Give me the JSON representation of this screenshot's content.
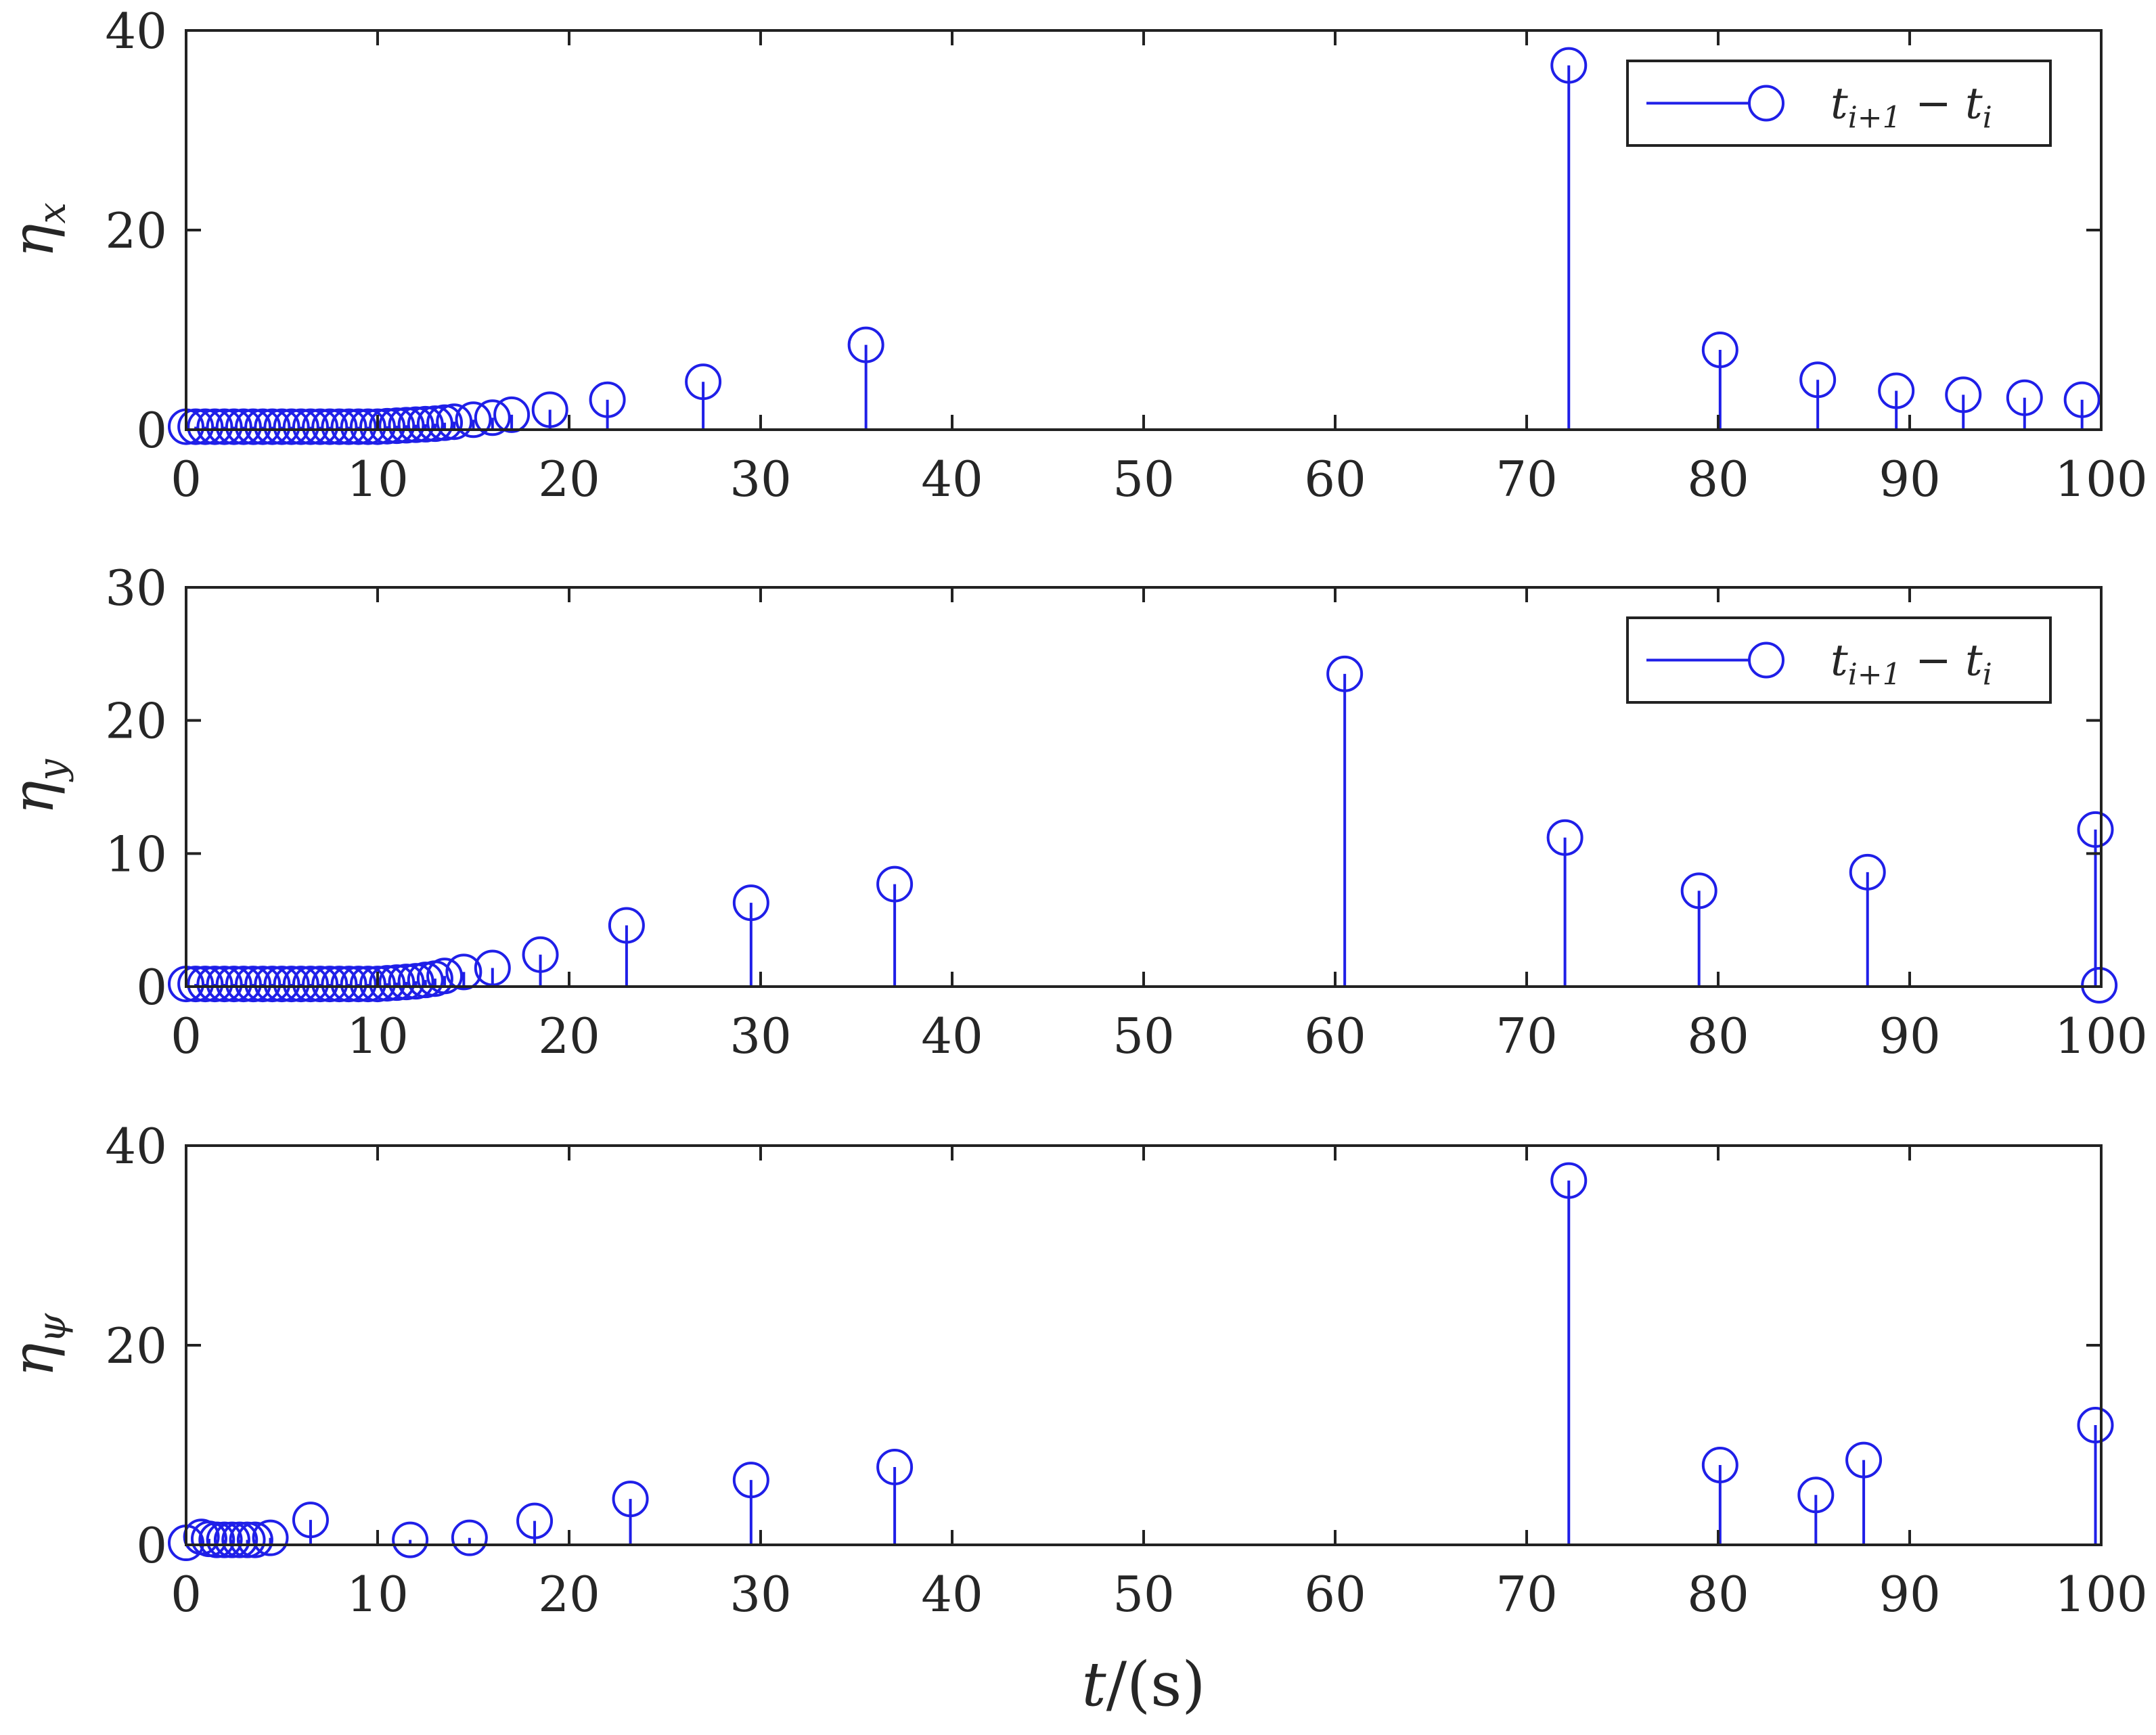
{
  "chart_data": [
    {
      "type": "stem",
      "ylabel": "η_x",
      "ylabel_main": "η",
      "ylabel_sub": "x",
      "xlim": [
        0,
        100
      ],
      "ylim": [
        0,
        40
      ],
      "xticks": [
        0,
        10,
        20,
        30,
        40,
        50,
        60,
        70,
        80,
        90,
        100
      ],
      "yticks": [
        0,
        20,
        40
      ],
      "legend": {
        "label_main": "t",
        "label_sub1": "i+1",
        "label_mid": " − t",
        "label_sub2": "i",
        "position": "top-right"
      },
      "series": [
        {
          "x": [
            0,
            0.5,
            1,
            1.5,
            2,
            2.5,
            3,
            3.5,
            4,
            4.5,
            5,
            5.5,
            6,
            6.5,
            7,
            7.5,
            8,
            8.5,
            9,
            9.5,
            10,
            10.5,
            11,
            11.5,
            12,
            12.5,
            13,
            13.5,
            14,
            15,
            16,
            17,
            19,
            22,
            27,
            35.5,
            72.2,
            80.1,
            85.2,
            89.3,
            92.8,
            96,
            99
          ],
          "y": [
            0.3,
            0.3,
            0.3,
            0.3,
            0.3,
            0.3,
            0.3,
            0.3,
            0.3,
            0.3,
            0.3,
            0.3,
            0.3,
            0.3,
            0.3,
            0.3,
            0.3,
            0.3,
            0.3,
            0.3,
            0.3,
            0.35,
            0.4,
            0.45,
            0.5,
            0.55,
            0.6,
            0.7,
            0.8,
            1.0,
            1.2,
            1.5,
            2.0,
            3.0,
            4.8,
            8.5,
            36.5,
            8.0,
            5.0,
            3.9,
            3.5,
            3.2,
            3.0
          ]
        }
      ]
    },
    {
      "type": "stem",
      "ylabel": "η_y",
      "ylabel_main": "η",
      "ylabel_sub": "y",
      "xlim": [
        0,
        100
      ],
      "ylim": [
        0,
        30
      ],
      "xticks": [
        0,
        10,
        20,
        30,
        40,
        50,
        60,
        70,
        80,
        90,
        100
      ],
      "yticks": [
        0,
        10,
        20,
        30
      ],
      "legend": {
        "label_main": "t",
        "label_sub1": "i+1",
        "label_mid": " − t",
        "label_sub2": "i",
        "position": "top-right"
      },
      "series": [
        {
          "x": [
            0,
            0.5,
            1,
            1.5,
            2,
            2.5,
            3,
            3.5,
            4,
            4.5,
            5,
            5.5,
            6,
            6.5,
            7,
            7.5,
            8,
            8.5,
            9,
            9.5,
            10,
            10.5,
            11,
            11.5,
            12,
            12.5,
            13,
            13.5,
            14.5,
            16,
            18.5,
            23,
            29.5,
            37,
            60.5,
            72,
            79,
            87.8,
            99.7,
            99.9
          ],
          "y": [
            0.2,
            0.2,
            0.2,
            0.2,
            0.2,
            0.2,
            0.2,
            0.2,
            0.2,
            0.2,
            0.2,
            0.2,
            0.2,
            0.2,
            0.2,
            0.2,
            0.2,
            0.2,
            0.2,
            0.2,
            0.2,
            0.25,
            0.3,
            0.35,
            0.4,
            0.5,
            0.6,
            0.8,
            1.1,
            1.4,
            2.4,
            4.6,
            6.3,
            7.7,
            23.5,
            11.2,
            7.2,
            8.6,
            11.8,
            0.1
          ]
        }
      ]
    },
    {
      "type": "stem",
      "ylabel": "η_ψ",
      "ylabel_main": "η",
      "ylabel_sub": "ψ",
      "xlabel": "t/(s)",
      "xlim": [
        0,
        100
      ],
      "ylim": [
        0,
        40
      ],
      "xticks": [
        0,
        10,
        20,
        30,
        40,
        50,
        60,
        70,
        80,
        90,
        100
      ],
      "yticks": [
        0,
        20,
        40
      ],
      "series": [
        {
          "x": [
            0,
            0.8,
            1.2,
            1.6,
            2.0,
            2.4,
            2.8,
            3.2,
            3.6,
            4.4,
            6.5,
            11.7,
            14.8,
            18.2,
            23.2,
            29.5,
            37,
            72.2,
            80.1,
            85.1,
            87.6,
            99.7
          ],
          "y": [
            0.2,
            0.8,
            0.6,
            0.5,
            0.5,
            0.5,
            0.5,
            0.5,
            0.5,
            0.7,
            2.5,
            0.5,
            0.7,
            2.4,
            4.6,
            6.5,
            7.8,
            36.5,
            8.0,
            5.0,
            8.5,
            12.0
          ]
        }
      ]
    }
  ],
  "colors": {
    "series": "#1f1fe8",
    "axes": "#222222",
    "text": "#262626"
  }
}
